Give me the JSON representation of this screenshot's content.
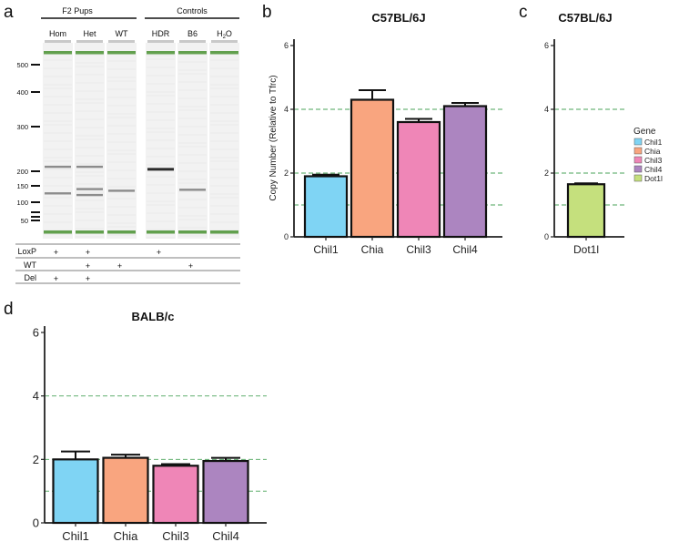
{
  "panels": {
    "a": "a",
    "b": "b",
    "c": "c",
    "d": "d"
  },
  "gel": {
    "group_pups": "F2 Pups",
    "group_controls": "Controls",
    "lanes": [
      "Hom",
      "Het",
      "WT",
      "HDR",
      "B6",
      "H2O"
    ],
    "ladder_ticks": [
      "500",
      "400",
      "300",
      "200",
      "150",
      "100",
      "50"
    ],
    "ladder_bp": [
      500,
      400,
      300,
      200,
      150,
      100,
      50
    ],
    "lane_bands_bp": [
      [
        210,
        127
      ],
      [
        210,
        140,
        122
      ],
      [
        135
      ],
      [
        205
      ],
      [
        138
      ],
      []
    ],
    "marker_bands_bp": [
      540,
      15
    ],
    "genotype_rows": [
      {
        "label": "LoxP",
        "marks": [
          true,
          true,
          false,
          true,
          false,
          false
        ]
      },
      {
        "label": "WT",
        "marks": [
          false,
          true,
          true,
          false,
          true,
          false
        ]
      },
      {
        "label": "Del",
        "marks": [
          true,
          true,
          false,
          false,
          false,
          false
        ]
      }
    ],
    "mark_symbol": "+"
  },
  "legend": {
    "title": "Gene",
    "items": [
      {
        "name": "Chil1",
        "color": "#7fd4f4"
      },
      {
        "name": "Chia",
        "color": "#f9a57f"
      },
      {
        "name": "Chil3",
        "color": "#ef86b7"
      },
      {
        "name": "Chil4",
        "color": "#ac85c0"
      },
      {
        "name": "Dot1l",
        "color": "#c5e07d"
      }
    ]
  },
  "chart_data": [
    {
      "panel": "b",
      "type": "bar",
      "title": "C57BL/6J",
      "ylabel": "Copy Number (Relative to Tfrc)",
      "categories": [
        "Chil1",
        "Chia",
        "Chil3",
        "Chil4"
      ],
      "values": [
        1.9,
        4.3,
        3.6,
        4.1
      ],
      "errors": [
        0.05,
        0.3,
        0.1,
        0.1
      ],
      "colors": [
        "#7fd4f4",
        "#f9a57f",
        "#ef86b7",
        "#ac85c0"
      ],
      "ylim": [
        0,
        6.2
      ],
      "yticks": [
        "0",
        "2",
        "4",
        "6"
      ],
      "reference_lines": [
        1,
        2,
        4
      ]
    },
    {
      "panel": "c",
      "type": "bar",
      "title": "C57BL/6J",
      "categories": [
        "Dot1l"
      ],
      "values": [
        1.65
      ],
      "errors": [
        0.03
      ],
      "colors": [
        "#c5e07d"
      ],
      "ylim": [
        0,
        6.2
      ],
      "yticks": [
        "0",
        "2",
        "4",
        "6"
      ],
      "reference_lines": [
        1,
        2,
        4
      ]
    },
    {
      "panel": "d",
      "type": "bar",
      "title": "BALB/c",
      "categories": [
        "Chil1",
        "Chia",
        "Chil3",
        "Chil4"
      ],
      "values": [
        2.0,
        2.05,
        1.8,
        1.95
      ],
      "errors": [
        0.25,
        0.1,
        0.05,
        0.1
      ],
      "colors": [
        "#7fd4f4",
        "#f9a57f",
        "#ef86b7",
        "#ac85c0"
      ],
      "ylim": [
        0,
        6.2
      ],
      "yticks": [
        "0",
        "2",
        "4",
        "6"
      ],
      "reference_lines": [
        1,
        2,
        4
      ]
    }
  ]
}
